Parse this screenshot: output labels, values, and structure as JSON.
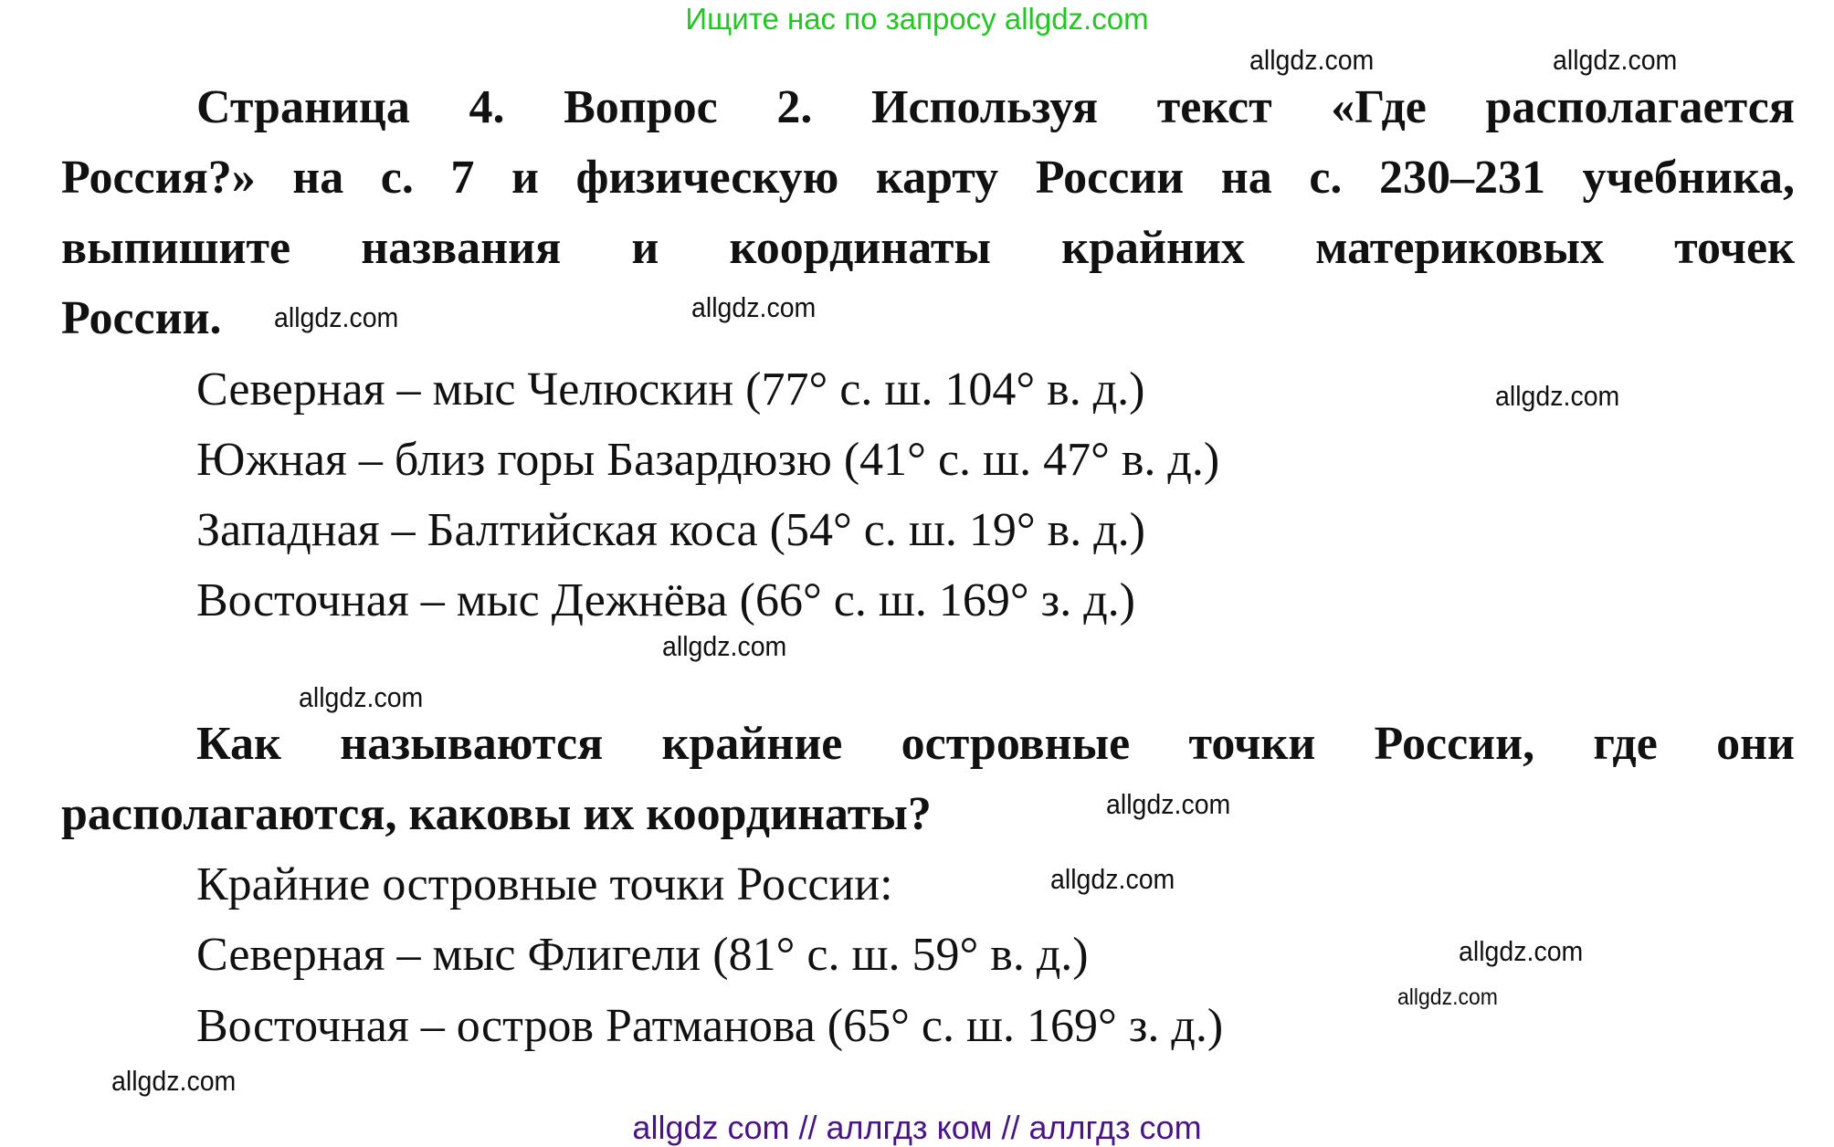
{
  "header": {
    "promo": "Ищите нас по запросу allgdz.com"
  },
  "question1": {
    "lines": [
      "Страница 4. Вопрос 2. Используя текст «Где располагается",
      "Россия?» на с. 7 и физическую карту России на с. 230–231 учебника,",
      "выпишите названия и координаты крайних материковых точек",
      "России."
    ]
  },
  "answer1": [
    "Северная – мыс Челюскин (77° с. ш. 104° в. д.)",
    "Южная – близ горы Базардюзю (41° с. ш. 47° в. д.)",
    "Западная – Балтийская коса (54° с. ш. 19° в. д.)",
    "Восточная – мыс Дежнёва (66° с. ш. 169° з. д.)"
  ],
  "question2": {
    "lines": [
      "Как называются крайние островные точки России, где они",
      "располагаются, каковы их координаты?"
    ]
  },
  "answer2": [
    "Крайние островные точки России:",
    "Северная – мыс Флигели (81° с. ш. 59° в. д.)",
    "Восточная – остров Ратманова (65° с. ш. 169° з. д.)"
  ],
  "watermark": "allgdz.com",
  "footer": "allgdz com  //  аллгдз ком  //  аллгдз com"
}
